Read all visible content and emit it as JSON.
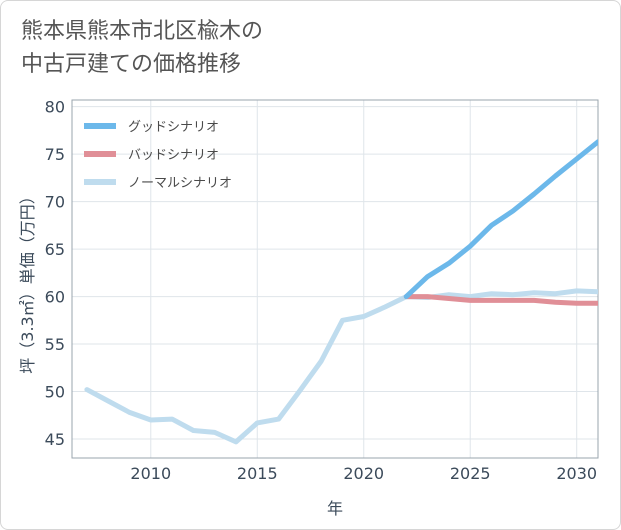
{
  "title_lines": [
    "熊本県熊本市北区楡木の",
    "中古戸建ての価格推移"
  ],
  "chart_data": {
    "type": "line",
    "xlabel": "年",
    "ylabel": "坪（3.3㎡）単価（万円）",
    "xlim": [
      2006.3,
      2031
    ],
    "ylim": [
      43,
      80.7
    ],
    "xticks": [
      2010,
      2015,
      2020,
      2025,
      2030
    ],
    "yticks": [
      45,
      50,
      55,
      60,
      65,
      70,
      75,
      80
    ],
    "grid": true,
    "legend_position": "top-left",
    "series": [
      {
        "name": "グッドシナリオ",
        "color": "#6cb8ea",
        "x": [
          2022,
          2023,
          2024,
          2025,
          2026,
          2027,
          2028,
          2029,
          2030,
          2031
        ],
        "y": [
          60.0,
          62.1,
          63.5,
          65.3,
          67.5,
          69.0,
          70.8,
          72.7,
          74.5,
          76.3
        ]
      },
      {
        "name": "バッドシナリオ",
        "color": "#e08f97",
        "x": [
          2022,
          2023,
          2024,
          2025,
          2026,
          2027,
          2028,
          2029,
          2030,
          2031
        ],
        "y": [
          60.0,
          60.0,
          59.8,
          59.6,
          59.6,
          59.6,
          59.6,
          59.4,
          59.3,
          59.3
        ]
      },
      {
        "name": "ノーマルシナリオ",
        "color": "#bfdcee",
        "x": [
          2007,
          2008,
          2009,
          2010,
          2011,
          2012,
          2013,
          2014,
          2015,
          2016,
          2017,
          2018,
          2019,
          2020,
          2021,
          2022,
          2023,
          2024,
          2025,
          2026,
          2027,
          2028,
          2029,
          2030,
          2031
        ],
        "y": [
          50.2,
          49.0,
          47.8,
          47.0,
          47.1,
          45.9,
          45.7,
          44.7,
          46.7,
          47.1,
          50.1,
          53.2,
          57.5,
          57.9,
          58.9,
          60.0,
          59.9,
          60.2,
          60.0,
          60.3,
          60.2,
          60.4,
          60.3,
          60.6,
          60.5
        ]
      }
    ]
  }
}
